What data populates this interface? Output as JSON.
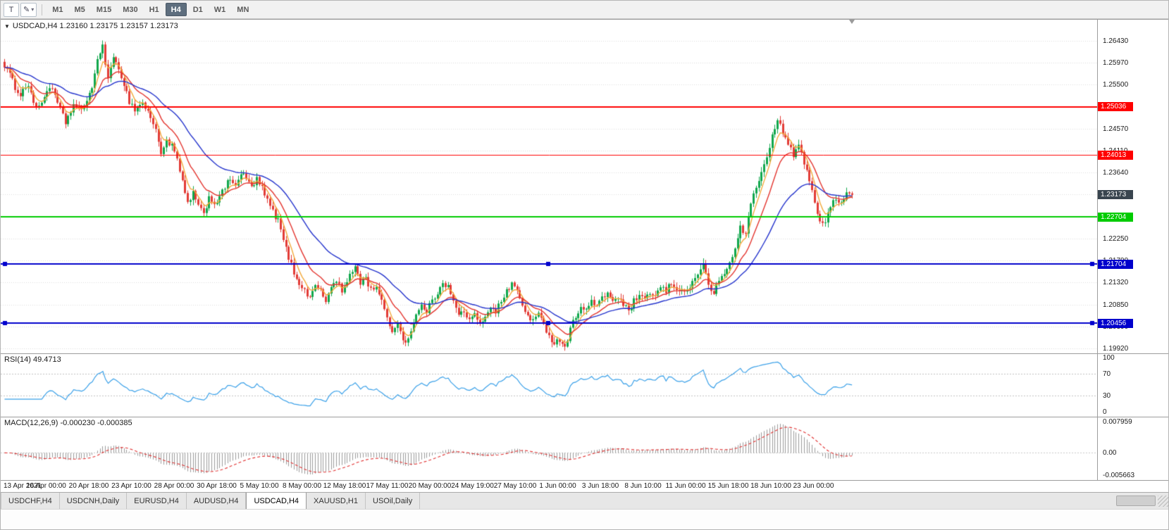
{
  "icons": {
    "text_tool": "T",
    "pencil": "✎",
    "caret": "▾",
    "collapse": "▼"
  },
  "toolbar": {
    "timeframes": [
      "M1",
      "M5",
      "M15",
      "M30",
      "H1",
      "H4",
      "D1",
      "W1",
      "MN"
    ],
    "active_timeframe": "H4"
  },
  "chart_data": {
    "type": "candlestick",
    "symbol": "USDCAD",
    "timeframe": "H4",
    "ohlc_title": "USDCAD,H4 1.23160 1.23175 1.23157 1.23173",
    "ohlc": {
      "open": 1.2316,
      "high": 1.23175,
      "low": 1.23157,
      "close": 1.23173
    },
    "colors": {
      "up": "#11a74c",
      "down": "#e23b36",
      "grid": "#dcdcdc",
      "ma_fast": "#f2a93b",
      "ma_mid": "#e3342e",
      "ma_slow": "#2433cc",
      "rsi_line": "#3aa0e8",
      "macd_hist": "#9b9b9b",
      "macd_signal": "#e03030"
    },
    "main": {
      "ylim": [
        1.1982,
        1.2689
      ],
      "yticks": [
        "1.26430",
        "1.25970",
        "1.25500",
        "1.25040",
        "1.24570",
        "1.24110",
        "1.23640",
        "1.23180",
        "1.22710",
        "1.22250",
        "1.21790",
        "1.21320",
        "1.20850",
        "1.20390",
        "1.19920"
      ],
      "candle_count": 320,
      "close_waypoints": [
        [
          0,
          1.2592
        ],
        [
          2,
          1.257
        ],
        [
          4,
          1.2545
        ],
        [
          6,
          1.253
        ],
        [
          9,
          1.2552
        ],
        [
          12,
          1.2495
        ],
        [
          15,
          1.2525
        ],
        [
          17,
          1.2548
        ],
        [
          20,
          1.2512
        ],
        [
          23,
          1.247
        ],
        [
          26,
          1.2508
        ],
        [
          29,
          1.2492
        ],
        [
          31,
          1.252
        ],
        [
          33,
          1.2545
        ],
        [
          35,
          1.2598
        ],
        [
          37,
          1.2636
        ],
        [
          39,
          1.2562
        ],
        [
          41,
          1.2602
        ],
        [
          43,
          1.2588
        ],
        [
          45,
          1.255
        ],
        [
          47,
          1.2515
        ],
        [
          49,
          1.2498
        ],
        [
          52,
          1.2512
        ],
        [
          55,
          1.2482
        ],
        [
          57,
          1.2452
        ],
        [
          59,
          1.2408
        ],
        [
          61,
          1.2432
        ],
        [
          63,
          1.242
        ],
        [
          65,
          1.2392
        ],
        [
          67,
          1.2342
        ],
        [
          69,
          1.2298
        ],
        [
          71,
          1.2322
        ],
        [
          73,
          1.229
        ],
        [
          75,
          1.2278
        ],
        [
          77,
          1.2312
        ],
        [
          79,
          1.23
        ],
        [
          81,
          1.2312
        ],
        [
          83,
          1.2332
        ],
        [
          85,
          1.2352
        ],
        [
          87,
          1.234
        ],
        [
          90,
          1.2362
        ],
        [
          93,
          1.2332
        ],
        [
          95,
          1.235
        ],
        [
          97,
          1.233
        ],
        [
          100,
          1.2292
        ],
        [
          103,
          1.2262
        ],
        [
          106,
          1.2202
        ],
        [
          109,
          1.2152
        ],
        [
          112,
          1.2122
        ],
        [
          115,
          1.2098
        ],
        [
          117,
          1.2132
        ],
        [
          119,
          1.2112
        ],
        [
          121,
          1.2092
        ],
        [
          123,
          1.2122
        ],
        [
          125,
          1.2138
        ],
        [
          127,
          1.2112
        ],
        [
          129,
          1.2132
        ],
        [
          132,
          1.2168
        ],
        [
          134,
          1.2132
        ],
        [
          136,
          1.2142
        ],
        [
          138,
          1.2116
        ],
        [
          140,
          1.2126
        ],
        [
          142,
          1.2092
        ],
        [
          144,
          1.2052
        ],
        [
          146,
          1.2032
        ],
        [
          148,
          1.2044
        ],
        [
          151,
          1.2002
        ],
        [
          153,
          1.2032
        ],
        [
          155,
          1.2062
        ],
        [
          157,
          1.2082
        ],
        [
          159,
          1.2072
        ],
        [
          161,
          1.2092
        ],
        [
          163,
          1.2112
        ],
        [
          165,
          1.2135
        ],
        [
          167,
          1.2122
        ],
        [
          169,
          1.2092
        ],
        [
          171,
          1.2062
        ],
        [
          173,
          1.2072
        ],
        [
          175,
          1.2052
        ],
        [
          177,
          1.2062
        ],
        [
          179,
          1.2042
        ],
        [
          181,
          1.2062
        ],
        [
          183,
          1.2082
        ],
        [
          185,
          1.2072
        ],
        [
          187,
          1.2092
        ],
        [
          189,
          1.2112
        ],
        [
          191,
          1.2132
        ],
        [
          193,
          1.2112
        ],
        [
          195,
          1.2082
        ],
        [
          197,
          1.2062
        ],
        [
          199,
          1.2052
        ],
        [
          201,
          1.2062
        ],
        [
          203,
          1.2042
        ],
        [
          205,
          1.2022
        ],
        [
          207,
          1.2002
        ],
        [
          209,
          1.2012
        ],
        [
          211,
          1.1996
        ],
        [
          213,
          1.2032
        ],
        [
          215,
          1.2062
        ],
        [
          217,
          1.2082
        ],
        [
          219,
          1.2072
        ],
        [
          221,
          1.2092
        ],
        [
          223,
          1.2082
        ],
        [
          225,
          1.2096
        ],
        [
          227,
          1.2112
        ],
        [
          229,
          1.2092
        ],
        [
          231,
          1.2102
        ],
        [
          233,
          1.2082
        ],
        [
          235,
          1.2072
        ],
        [
          237,
          1.2092
        ],
        [
          239,
          1.2102
        ],
        [
          241,
          1.2092
        ],
        [
          243,
          1.2112
        ],
        [
          245,
          1.2102
        ],
        [
          247,
          1.2122
        ],
        [
          249,
          1.2112
        ],
        [
          251,
          1.2132
        ],
        [
          253,
          1.2112
        ],
        [
          255,
          1.2122
        ],
        [
          257,
          1.2112
        ],
        [
          259,
          1.2132
        ],
        [
          261,
          1.2152
        ],
        [
          263,
          1.2172
        ],
        [
          265,
          1.2122
        ],
        [
          267,
          1.2112
        ],
        [
          269,
          1.2132
        ],
        [
          271,
          1.2152
        ],
        [
          273,
          1.2172
        ],
        [
          275,
          1.2202
        ],
        [
          277,
          1.2252
        ],
        [
          279,
          1.2232
        ],
        [
          281,
          1.2302
        ],
        [
          283,
          1.2332
        ],
        [
          285,
          1.2362
        ],
        [
          287,
          1.2402
        ],
        [
          289,
          1.2442
        ],
        [
          291,
          1.2472
        ],
        [
          293,
          1.2452
        ],
        [
          295,
          1.2422
        ],
        [
          297,
          1.2402
        ],
        [
          299,
          1.2422
        ],
        [
          301,
          1.2382
        ],
        [
          303,
          1.2352
        ],
        [
          305,
          1.2302
        ],
        [
          307,
          1.2262
        ],
        [
          309,
          1.2256
        ],
        [
          311,
          1.2292
        ],
        [
          313,
          1.2312
        ],
        [
          315,
          1.2302
        ],
        [
          317,
          1.2322
        ],
        [
          319,
          1.23173
        ]
      ],
      "moving_averages": [
        {
          "period": 5,
          "color": "#f2a93b"
        },
        {
          "period": 13,
          "color": "#e3342e"
        },
        {
          "period": 34,
          "color": "#2433cc"
        }
      ],
      "hlines": [
        {
          "price": 1.25036,
          "label": "1.25036",
          "color": "#ff0000",
          "width": 2,
          "handles": false
        },
        {
          "price": 1.24013,
          "label": "1.24013",
          "color": "#ff0000",
          "width": 1,
          "handles": false
        },
        {
          "price": 1.22704,
          "label": "1.22704",
          "color": "#00cc00",
          "width": 2,
          "handles": false
        },
        {
          "price": 1.21704,
          "label": "1.21704",
          "color": "#0000cc",
          "width": 2,
          "handles": true
        },
        {
          "price": 1.20456,
          "label": "1.20456",
          "color": "#0000cc",
          "width": 2,
          "handles": true
        }
      ],
      "current_price": {
        "value": 1.23173,
        "label": "1.23173",
        "badge_color": "#39454f"
      }
    },
    "rsi": {
      "label": "RSI(14) 49.4713",
      "period": 14,
      "current": 49.4713,
      "levels": [
        100,
        70,
        30,
        0
      ],
      "dotted_levels": [
        70,
        30
      ]
    },
    "macd": {
      "label": "MACD(12,26,9) -0.000230 -0.000385",
      "params": [
        12,
        26,
        9
      ],
      "values": [
        -0.00023,
        -0.000385
      ],
      "ylim": [
        -0.005663,
        0.007959
      ],
      "yticks": [
        "0.007959",
        "0.00",
        "-0.005663"
      ]
    },
    "xticks": [
      "13 Apr 2021",
      "16 Apr 00:00",
      "20 Apr 18:00",
      "23 Apr 10:00",
      "28 Apr 00:00",
      "30 Apr 18:00",
      "5 May 10:00",
      "8 May 00:00",
      "12 May 18:00",
      "17 May 11:00",
      "20 May 00:00",
      "24 May 19:00",
      "27 May 10:00",
      "1 Jun 00:00",
      "3 Jun 18:00",
      "8 Jun 10:00",
      "11 Jun 00:00",
      "15 Jun 18:00",
      "18 Jun 10:00",
      "23 Jun 00:00"
    ]
  },
  "tabs": {
    "items": [
      {
        "label": "USDCHF,H4",
        "active": false
      },
      {
        "label": "USDCNH,Daily",
        "active": false
      },
      {
        "label": "EURUSD,H4",
        "active": false
      },
      {
        "label": "AUDUSD,H4",
        "active": false
      },
      {
        "label": "USDCAD,H4",
        "active": true
      },
      {
        "label": "XAUUSD,H1",
        "active": false
      },
      {
        "label": "USOil,Daily",
        "active": false
      }
    ]
  }
}
